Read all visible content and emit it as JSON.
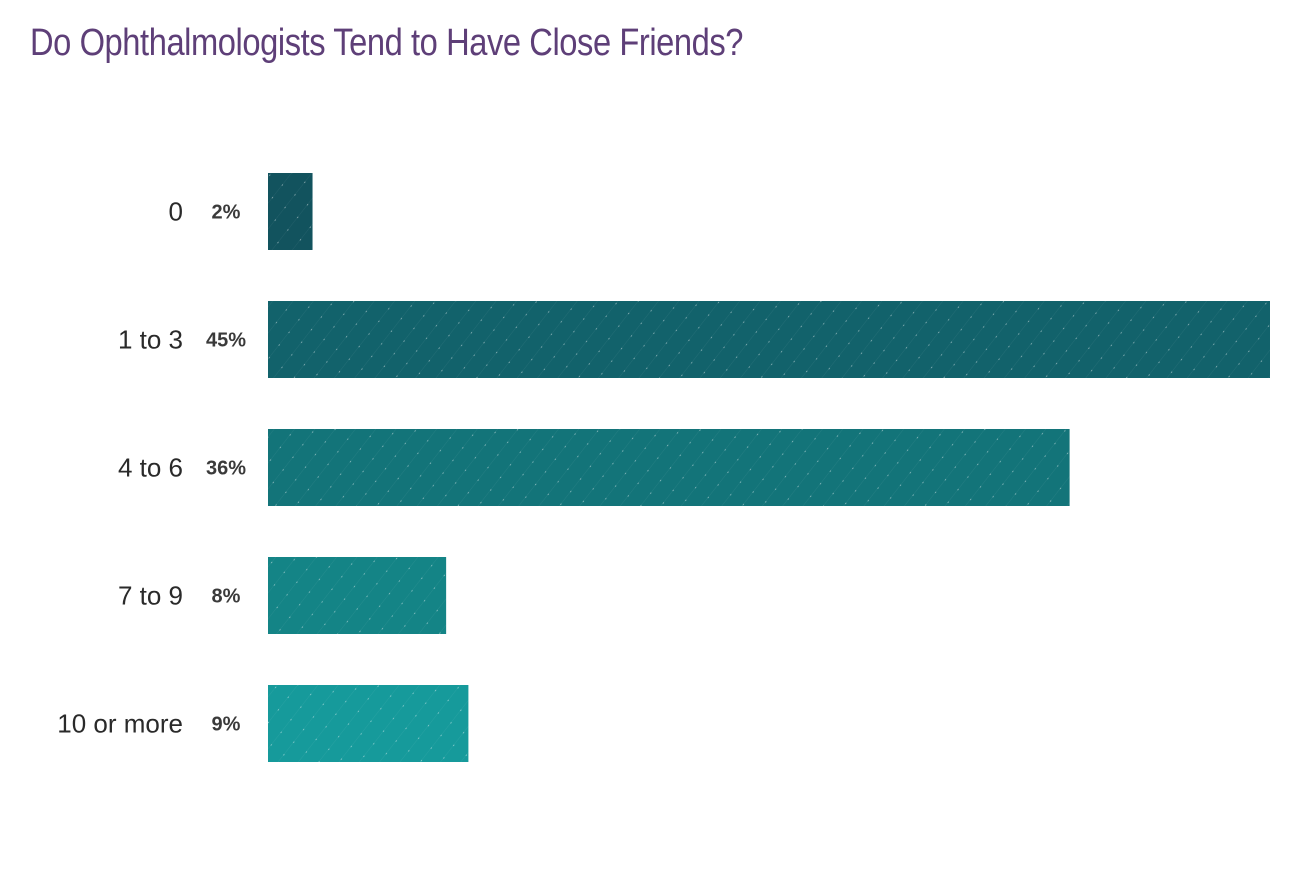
{
  "chart_data": {
    "type": "bar",
    "orientation": "horizontal",
    "title": "Do Ophthalmologists Tend to Have Close Friends?",
    "categories": [
      "0",
      "1 to 3",
      "4 to 6",
      "7 to 9",
      "10 or more"
    ],
    "values": [
      2,
      45,
      36,
      8,
      9
    ],
    "value_labels": [
      "2%",
      "45%",
      "36%",
      "8%",
      "9%"
    ],
    "xlim": [
      0,
      45
    ],
    "grid": false,
    "legend": "none",
    "colors": [
      "#12535e",
      "#12626b",
      "#137479",
      "#148486",
      "#169a9b"
    ]
  }
}
